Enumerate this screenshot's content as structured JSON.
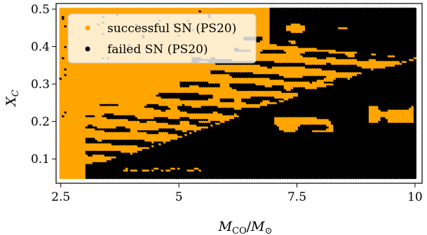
{
  "chart_data": {
    "type": "scatter",
    "xlabel": "M_CO/M_⊙",
    "ylabel": "X_C",
    "xlim": [
      2.4,
      10.15
    ],
    "ylim": [
      0.035,
      0.515
    ],
    "x_ticks": [
      {
        "value": 2.5,
        "label": "2.5"
      },
      {
        "value": 5,
        "label": "5"
      },
      {
        "value": 7.5,
        "label": "7.5"
      },
      {
        "value": 10,
        "label": "10"
      }
    ],
    "y_ticks": [
      {
        "value": 0.1,
        "label": "0.1"
      },
      {
        "value": 0.2,
        "label": "0.2"
      },
      {
        "value": 0.3,
        "label": "0.3"
      },
      {
        "value": 0.4,
        "label": "0.4"
      },
      {
        "value": 0.5,
        "label": "0.5"
      }
    ],
    "grid_spec": {
      "x_min": 2.5,
      "x_max": 10.0,
      "x_step": 0.05,
      "y_min": 0.05,
      "y_max": 0.5,
      "y_step": 0.005
    },
    "failed_boundary": [
      {
        "x": 2.5,
        "y": 0.03
      },
      {
        "x": 3.0,
        "y": 0.075
      },
      {
        "x": 4.0,
        "y": 0.115
      },
      {
        "x": 5.0,
        "y": 0.16
      },
      {
        "x": 6.0,
        "y": 0.205
      },
      {
        "x": 7.0,
        "y": 0.25
      },
      {
        "x": 8.0,
        "y": 0.29
      },
      {
        "x": 9.0,
        "y": 0.33
      },
      {
        "x": 10.0,
        "y": 0.37
      }
    ],
    "series": [
      {
        "name": "successful SN (PS20)",
        "color": "#FFA500"
      },
      {
        "name": "failed SN (PS20)",
        "color": "#000000"
      }
    ],
    "legend_position": "top-left",
    "grid": false
  }
}
